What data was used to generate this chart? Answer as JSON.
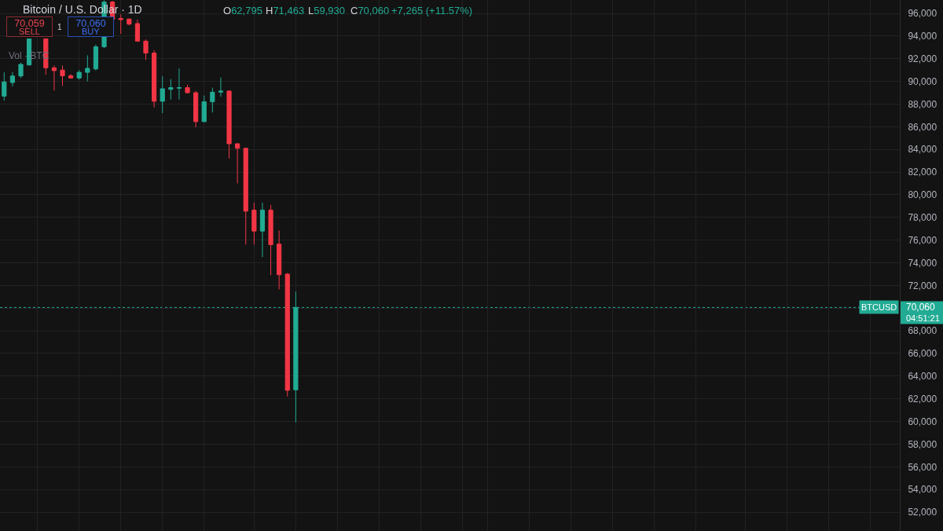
{
  "chart_data": {
    "type": "candlestick",
    "title": "Bitcoin / U.S. Dollar · 1D",
    "categories": [
      null,
      null,
      null,
      null,
      null,
      null,
      null,
      null,
      null,
      null,
      null,
      null,
      null,
      null,
      null,
      null,
      null,
      null,
      null,
      null,
      null,
      null,
      null,
      null,
      null,
      null,
      null,
      null,
      null,
      null,
      null,
      null,
      null,
      null,
      null,
      null,
      null,
      null,
      null,
      null,
      null,
      null,
      null,
      null,
      null,
      null,
      null,
      null,
      null,
      null,
      null,
      null,
      null,
      null,
      null,
      null,
      null,
      null,
      null,
      null,
      null,
      null,
      null,
      null,
      null,
      null,
      null,
      null,
      null,
      null,
      null,
      null,
      null,
      null,
      null,
      null,
      null,
      null,
      null,
      null,
      null,
      null,
      null,
      null,
      null,
      null,
      null,
      null,
      null,
      null,
      null,
      null,
      null,
      null,
      null,
      null,
      null,
      null,
      null,
      null,
      null,
      null,
      null,
      null,
      null,
      null,
      null,
      null
    ],
    "ohlc": [
      [
        88700,
        90800,
        88300,
        89950
      ],
      [
        89900,
        90830,
        89560,
        90480
      ],
      [
        90480,
        91650,
        90300,
        91500
      ],
      [
        91450,
        93750,
        91400,
        93750
      ],
      null,
      [
        93750,
        93750,
        90600,
        91200
      ],
      [
        91200,
        91400,
        89200,
        90950
      ],
      [
        91000,
        91400,
        89600,
        90500
      ],
      [
        90500,
        90650,
        90250,
        90300
      ],
      [
        90300,
        91000,
        90150,
        90800
      ],
      [
        90800,
        92300,
        90000,
        91150
      ],
      [
        91100,
        93250,
        90950,
        93050
      ],
      [
        93050,
        97150,
        92950,
        97000
      ],
      [
        97000,
        97100,
        95400,
        95500
      ],
      [
        95550,
        95900,
        94200,
        95450
      ],
      [
        95500,
        95550,
        94950,
        95050
      ],
      [
        95100,
        95450,
        93500,
        93550
      ],
      [
        93550,
        93700,
        91900,
        92500
      ],
      [
        92500,
        92750,
        87700,
        88250
      ],
      [
        88250,
        90450,
        87200,
        89350
      ],
      [
        89300,
        90200,
        88400,
        89450
      ],
      [
        89400,
        91150,
        88400,
        89450
      ],
      [
        89450,
        89700,
        88950,
        89000
      ],
      [
        89000,
        89150,
        85950,
        86450
      ],
      [
        86450,
        88750,
        86400,
        88200
      ],
      [
        88200,
        89450,
        87250,
        89050
      ],
      [
        89050,
        90350,
        88650,
        89150
      ],
      [
        89150,
        89200,
        83200,
        84500
      ],
      [
        84500,
        84550,
        81000,
        84100
      ],
      [
        84100,
        84150,
        75600,
        78550
      ],
      [
        78650,
        79300,
        75600,
        76800
      ],
      [
        76800,
        79300,
        74500,
        78650
      ],
      [
        78650,
        79100,
        72900,
        75600
      ],
      [
        75650,
        76850,
        71650,
        72950
      ],
      [
        73000,
        73100,
        62200,
        62750
      ],
      [
        62795,
        71463,
        59930,
        70060
      ],
      null,
      null,
      null,
      null,
      null,
      null,
      null,
      null,
      null,
      null,
      null,
      null,
      null,
      null,
      null,
      null,
      null,
      null,
      null,
      null,
      null,
      null,
      null,
      null,
      null,
      null,
      null,
      null,
      null,
      null,
      null,
      null,
      null,
      null,
      null,
      null,
      null,
      null,
      null,
      null,
      null,
      null,
      null,
      null,
      null,
      null,
      null,
      null,
      null,
      null,
      null,
      null,
      null,
      null,
      null,
      null,
      null,
      null,
      null,
      null,
      null,
      null,
      null,
      null,
      null,
      null,
      null,
      null,
      null,
      null,
      null,
      null
    ],
    "colors": [
      "#22ab94",
      "#22ab94",
      "#22ab94",
      "#22ab94",
      null,
      "#f23645",
      "#f23645",
      "#f23645",
      "#f23645",
      "#22ab94",
      "#22ab94",
      "#22ab94",
      "#22ab94",
      "#f23645",
      "#f23645",
      "#f23645",
      "#f23645",
      "#f23645",
      "#f23645",
      "#22ab94",
      "#22ab94",
      "#22ab94",
      "#f23645",
      "#f23645",
      "#22ab94",
      "#22ab94",
      "#22ab94",
      "#f23645",
      "#f23645",
      "#f23645",
      "#f23645",
      "#22ab94",
      "#f23645",
      "#f23645",
      "#f23645",
      "#22ab94",
      null,
      null,
      null,
      null,
      null,
      null,
      null,
      null,
      null,
      null,
      null,
      null,
      null,
      null,
      null,
      null,
      null,
      null,
      null,
      null,
      null,
      null,
      null,
      null,
      null,
      null,
      null,
      null,
      null,
      null,
      null,
      null,
      null,
      null,
      null,
      null,
      null,
      null,
      null,
      null,
      null,
      null,
      null,
      null,
      null,
      null,
      null,
      null,
      null,
      null,
      null,
      null,
      null,
      null,
      null,
      null,
      null,
      null,
      null,
      null,
      null,
      null,
      null,
      null,
      null,
      null,
      null,
      null,
      null,
      null,
      null,
      null
    ],
    "ylim": [
      50340,
      97180
    ],
    "yticks": [
      {
        "value": 52000,
        "label": "52,000"
      },
      {
        "value": 54000,
        "label": "54,000"
      },
      {
        "value": 56000,
        "label": "56,000"
      },
      {
        "value": 58000,
        "label": "58,000"
      },
      {
        "value": 60000,
        "label": "60,000"
      },
      {
        "value": 62000,
        "label": "62,000"
      },
      {
        "value": 64000,
        "label": "64,000"
      },
      {
        "value": 66000,
        "label": "66,000"
      },
      {
        "value": 68000,
        "label": "68,000"
      },
      {
        "value": 70000,
        "label": null
      },
      {
        "value": 72000,
        "label": "72,000"
      },
      {
        "value": 74000,
        "label": "74,000"
      },
      {
        "value": 76000,
        "label": "76,000"
      },
      {
        "value": 78000,
        "label": "78,000"
      },
      {
        "value": 80000,
        "label": "80,000"
      },
      {
        "value": 82000,
        "label": "82,000"
      },
      {
        "value": 84000,
        "label": "84,000"
      },
      {
        "value": 86000,
        "label": "86,000"
      },
      {
        "value": 88000,
        "label": "88,000"
      },
      {
        "value": 90000,
        "label": "90,000"
      },
      {
        "value": 92000,
        "label": "92,000"
      },
      {
        "value": 94000,
        "label": "94,000"
      },
      {
        "value": 96000,
        "label": "96,000"
      }
    ],
    "grid": true,
    "tick_labels": "y",
    "ref_lines": [
      {
        "axis": "y",
        "value": 70060,
        "label": "70,060",
        "color": "#22ab94",
        "line_style": "dotted"
      }
    ],
    "annotations": [
      "O62,795",
      "H71,463",
      "L59,930",
      "C70,060",
      "+7,265 (+11.57%)",
      "70,059",
      "SELL",
      "1",
      "70,060",
      "BUY",
      "Vol · BTC",
      {
        "text": "BTCUSD",
        "y": 70060
      },
      "04:51:21"
    ]
  }
}
